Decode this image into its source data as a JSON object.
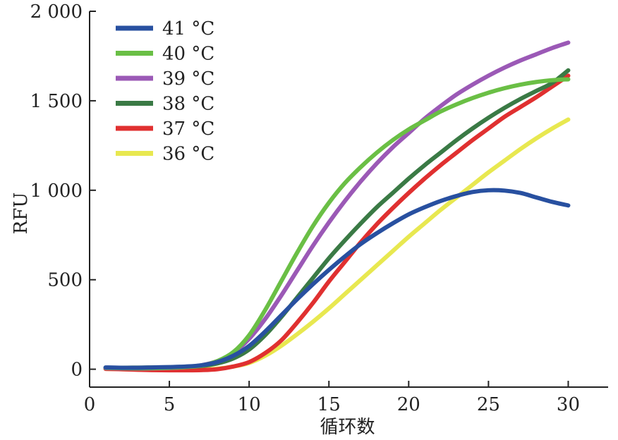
{
  "chart_data": {
    "type": "line",
    "ylabel": "RFU",
    "xlabel": "循环数",
    "xlim": [
      0,
      32.5
    ],
    "ylim": [
      -100,
      2000
    ],
    "x_ticks": [
      {
        "value": 0,
        "label": "0"
      },
      {
        "value": 5,
        "label": "5"
      },
      {
        "value": 10,
        "label": "10"
      },
      {
        "value": 15,
        "label": "15"
      },
      {
        "value": 20,
        "label": "20"
      },
      {
        "value": 25,
        "label": "25"
      },
      {
        "value": 30,
        "label": "30"
      }
    ],
    "y_ticks": [
      {
        "value": 0,
        "label": "0"
      },
      {
        "value": 500,
        "label": "500"
      },
      {
        "value": 1000,
        "label": "1 000"
      },
      {
        "value": 1500,
        "label": "1 500"
      },
      {
        "value": 2000,
        "label": "2 000"
      }
    ],
    "legend_position": "top-left",
    "grid": false,
    "x": [
      1,
      2,
      3,
      4,
      5,
      6,
      7,
      8,
      9,
      10,
      11,
      12,
      13,
      14,
      15,
      16,
      17,
      18,
      19,
      20,
      21,
      22,
      23,
      24,
      25,
      26,
      27,
      28,
      29,
      30
    ],
    "series": [
      {
        "name": "41 °C",
        "color": "#2850a0",
        "values": [
          10,
          8,
          8,
          10,
          12,
          15,
          22,
          40,
          75,
          130,
          210,
          300,
          390,
          475,
          555,
          630,
          700,
          760,
          815,
          865,
          905,
          940,
          968,
          990,
          1000,
          998,
          985,
          960,
          935,
          915
        ]
      },
      {
        "name": "40 °C",
        "color": "#6abf45",
        "values": [
          8,
          6,
          5,
          6,
          8,
          12,
          20,
          45,
          95,
          190,
          330,
          490,
          650,
          800,
          930,
          1040,
          1130,
          1210,
          1280,
          1340,
          1390,
          1440,
          1480,
          1515,
          1545,
          1570,
          1590,
          1605,
          1615,
          1620
        ]
      },
      {
        "name": "39 °C",
        "color": "#9b59b6",
        "values": [
          6,
          5,
          4,
          5,
          7,
          12,
          22,
          45,
          90,
          170,
          280,
          410,
          550,
          690,
          820,
          940,
          1050,
          1150,
          1240,
          1320,
          1400,
          1470,
          1535,
          1590,
          1640,
          1685,
          1725,
          1760,
          1795,
          1825
        ]
      },
      {
        "name": "38 °C",
        "color": "#3a7a45",
        "values": [
          8,
          8,
          9,
          10,
          11,
          13,
          18,
          32,
          60,
          110,
          190,
          290,
          400,
          510,
          620,
          720,
          815,
          905,
          985,
          1065,
          1140,
          1210,
          1280,
          1345,
          1405,
          1460,
          1510,
          1555,
          1600,
          1670
        ]
      },
      {
        "name": "37 °C",
        "color": "#e03030",
        "values": [
          2,
          0,
          -3,
          -5,
          -6,
          -6,
          -5,
          0,
          15,
          40,
          90,
          160,
          260,
          370,
          490,
          600,
          710,
          810,
          900,
          985,
          1065,
          1140,
          1210,
          1280,
          1345,
          1410,
          1465,
          1520,
          1580,
          1640
        ]
      },
      {
        "name": "36 °C",
        "color": "#e8e850",
        "values": [
          2,
          0,
          -2,
          -4,
          -5,
          -4,
          -2,
          3,
          15,
          35,
          75,
          130,
          195,
          265,
          340,
          420,
          500,
          580,
          660,
          740,
          815,
          890,
          960,
          1030,
          1100,
          1165,
          1230,
          1290,
          1345,
          1395
        ]
      }
    ]
  }
}
